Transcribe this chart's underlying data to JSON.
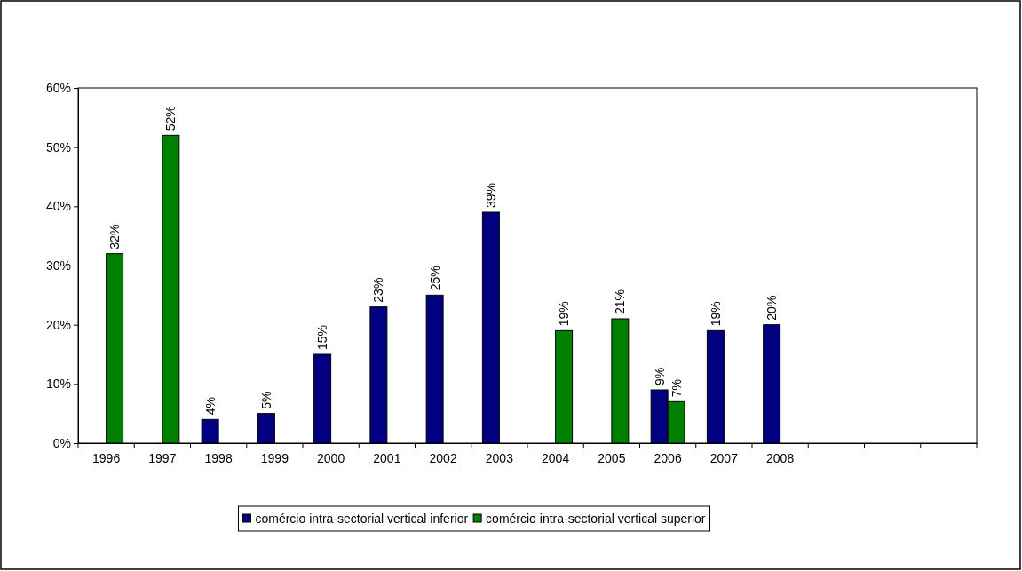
{
  "chart_data": {
    "type": "bar",
    "categories": [
      "1996",
      "1997",
      "1998",
      "1999",
      "2000",
      "2001",
      "2002",
      "2003",
      "2004",
      "2005",
      "2006",
      "2007",
      "2008",
      null,
      null,
      null
    ],
    "series": [
      {
        "name": "comércio intra-sectorial vertical inferior",
        "color": "#000080",
        "values": [
          null,
          null,
          4,
          5,
          15,
          23,
          25,
          39,
          null,
          null,
          9,
          19,
          20,
          null,
          null,
          null
        ],
        "value_labels": [
          null,
          null,
          "4%",
          "5%",
          "15%",
          "23%",
          "25%",
          "39%",
          null,
          null,
          "9%",
          "19%",
          "20%",
          null,
          null,
          null
        ]
      },
      {
        "name": "comércio intra-sectorial vertical superior",
        "color": "#008000",
        "values": [
          32,
          52,
          null,
          null,
          null,
          null,
          null,
          null,
          19,
          21,
          7,
          null,
          null,
          null,
          null,
          null
        ],
        "value_labels": [
          "32%",
          "52%",
          null,
          null,
          null,
          null,
          null,
          null,
          "19%",
          "21%",
          "7%",
          null,
          null,
          null,
          null,
          null
        ]
      }
    ],
    "ylim": [
      0,
      60
    ],
    "yticks": [
      {
        "value": 0,
        "label": "0%"
      },
      {
        "value": 10,
        "label": "10%"
      },
      {
        "value": 20,
        "label": "20%"
      },
      {
        "value": 30,
        "label": "30%"
      },
      {
        "value": 40,
        "label": "40%"
      },
      {
        "value": 50,
        "label": "50%"
      },
      {
        "value": 60,
        "label": "60%"
      }
    ],
    "grid": false,
    "legend": "bottom"
  }
}
